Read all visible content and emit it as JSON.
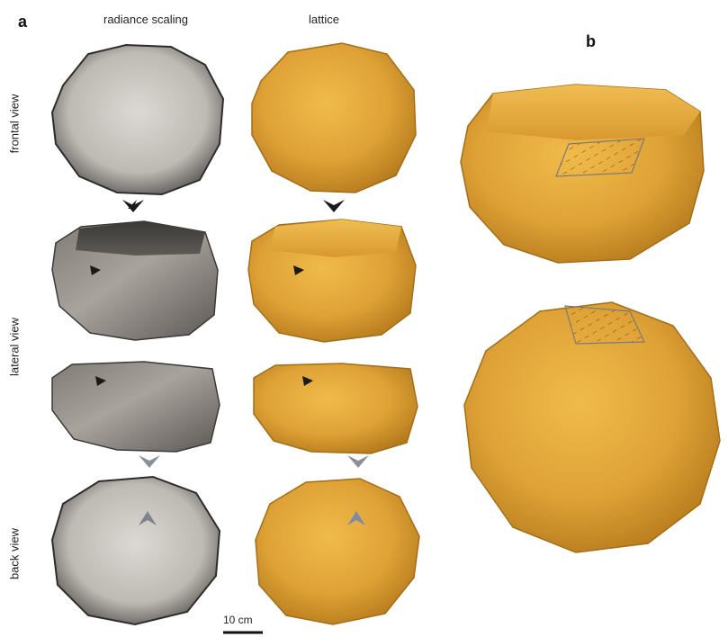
{
  "figure": {
    "panel_a_label": "a",
    "panel_b_label": "b",
    "column_titles": [
      "radiance scaling",
      "lattice"
    ],
    "row_labels": [
      "frontal view",
      "lateral view",
      "back view"
    ],
    "scale_bar_label": "10 cm",
    "colors": {
      "lattice_gold": "#e2a73a",
      "lattice_shadow": "#b57a1c",
      "radiance_light": "#c9c6c1",
      "radiance_dark": "#4a4744",
      "arrow_black": "#1a1a1a",
      "arrow_grey": "#8b8f96"
    }
  }
}
